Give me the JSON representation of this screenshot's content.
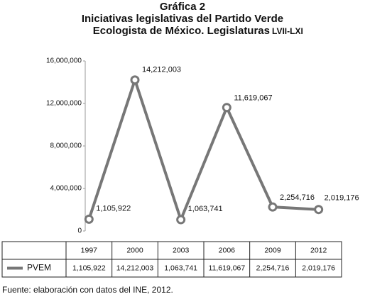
{
  "chart_data": {
    "type": "line",
    "title": "Gráfica 2",
    "subtitle": [
      "Iniciativas legislativas del Partido Verde",
      "Ecologista de México. Legislaturas"
    ],
    "subtitle_suffix": "LVII-LXI",
    "categories": [
      "1997",
      "2000",
      "2003",
      "2006",
      "2009",
      "2012"
    ],
    "series": [
      {
        "name": "PVEM",
        "color": "#777777",
        "values": [
          1105922,
          14212003,
          1063741,
          11619067,
          2254716,
          2019176
        ],
        "value_labels": [
          "1,105,922",
          "14,212,003",
          "1,063,741",
          "11,619,067",
          "2,254,716",
          "2,019,176"
        ]
      }
    ],
    "ylim": [
      0,
      16000000
    ],
    "yticks": [
      0,
      {
        "value": 4000000,
        "label": "4,000,000"
      },
      {
        "value": 8000000,
        "label": "8,000,000"
      },
      {
        "value": 12000000,
        "label": "12,000,000"
      },
      {
        "value": 16000000,
        "label": "16,000,000"
      }
    ],
    "grid": false,
    "source": "Fuente: elaboración con datos del INE, 2012."
  }
}
